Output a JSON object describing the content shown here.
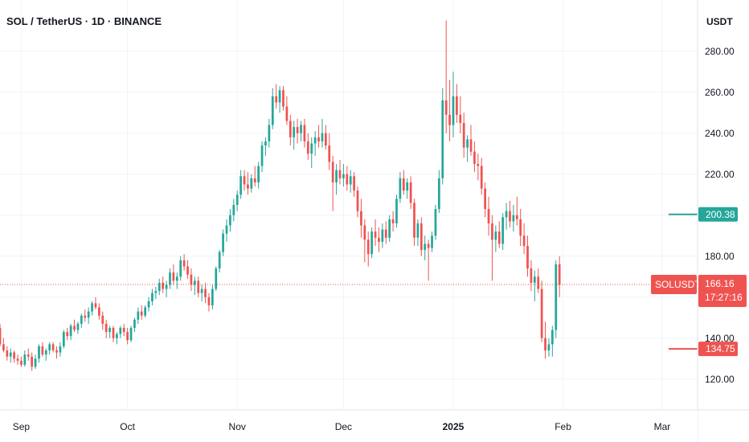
{
  "chart_data": {
    "type": "candlestick",
    "title": "SOL / TetherUS · 1D · BINANCE",
    "y_unit": "USDT",
    "ylim": [
      105,
      305
    ],
    "y_ticks": [
      "280.00",
      "260.00",
      "240.00",
      "220.00",
      "200.00",
      "180.00",
      "160.00",
      "140.00",
      "120.00"
    ],
    "y_tick_values": [
      280,
      260,
      240,
      220,
      200,
      180,
      160,
      140,
      120
    ],
    "x_labels": [
      "Sep",
      "Oct",
      "Nov",
      "Dec",
      "2025",
      "Feb",
      "Mar"
    ],
    "x_label_dates": [
      "2024-09-01",
      "2024-10-01",
      "2024-11-01",
      "2024-12-01",
      "2025-01-01",
      "2025-02-01",
      "2025-03-01"
    ],
    "x_range": [
      "2024-08-26",
      "2025-03-11"
    ],
    "grid": true,
    "colors": {
      "up": "#26a69a",
      "down": "#ef5350",
      "grid": "#f0f3fa",
      "current_line": "#ef5350"
    },
    "current_price": {
      "value": 166.16,
      "label": "166.16",
      "symbol": "SOLUSDT",
      "countdown": "17:27:16"
    },
    "levels": [
      {
        "value": 200.38,
        "label": "200.38",
        "color": "#26a69a",
        "start_date": "2025-03-01"
      },
      {
        "value": 134.75,
        "label": "134.75",
        "color": "#ef5350",
        "start_date": "2025-03-01"
      }
    ],
    "series": [
      {
        "type": "candlestick",
        "start_date": "2024-08-26",
        "ohlc": [
          [
            145,
            147,
            136,
            137
          ],
          [
            137,
            140,
            133,
            134
          ],
          [
            134,
            136,
            129,
            131
          ],
          [
            131,
            135,
            128,
            133
          ],
          [
            133,
            134,
            128,
            130
          ],
          [
            130,
            132,
            127,
            129
          ],
          [
            129,
            131,
            126,
            127
          ],
          [
            127,
            134,
            126,
            132
          ],
          [
            132,
            135,
            129,
            131
          ],
          [
            131,
            133,
            124,
            126
          ],
          [
            126,
            132,
            125,
            130
          ],
          [
            130,
            137,
            128,
            136
          ],
          [
            136,
            138,
            131,
            132
          ],
          [
            132,
            135,
            129,
            134
          ],
          [
            134,
            138,
            132,
            137
          ],
          [
            137,
            138,
            133,
            134
          ],
          [
            134,
            136,
            130,
            133
          ],
          [
            133,
            138,
            131,
            136
          ],
          [
            136,
            144,
            135,
            143
          ],
          [
            143,
            145,
            139,
            141
          ],
          [
            141,
            147,
            139,
            146
          ],
          [
            146,
            149,
            143,
            144
          ],
          [
            144,
            148,
            142,
            147
          ],
          [
            147,
            152,
            145,
            151
          ],
          [
            151,
            154,
            148,
            150
          ],
          [
            150,
            155,
            147,
            153
          ],
          [
            153,
            158,
            151,
            157
          ],
          [
            157,
            160,
            154,
            155
          ],
          [
            155,
            157,
            149,
            151
          ],
          [
            151,
            153,
            144,
            147
          ],
          [
            147,
            149,
            140,
            143
          ],
          [
            143,
            146,
            140,
            145
          ],
          [
            145,
            146,
            138,
            140
          ],
          [
            140,
            143,
            137,
            142
          ],
          [
            142,
            146,
            140,
            145
          ],
          [
            145,
            147,
            141,
            143
          ],
          [
            143,
            145,
            137,
            139
          ],
          [
            139,
            146,
            138,
            145
          ],
          [
            145,
            150,
            143,
            149
          ],
          [
            149,
            155,
            147,
            153
          ],
          [
            153,
            156,
            149,
            151
          ],
          [
            151,
            156,
            150,
            155
          ],
          [
            155,
            160,
            153,
            158
          ],
          [
            158,
            164,
            156,
            162
          ],
          [
            162,
            165,
            159,
            163
          ],
          [
            163,
            169,
            161,
            167
          ],
          [
            167,
            170,
            162,
            164
          ],
          [
            164,
            168,
            160,
            166
          ],
          [
            166,
            174,
            164,
            172
          ],
          [
            172,
            176,
            166,
            168
          ],
          [
            168,
            172,
            164,
            170
          ],
          [
            170,
            180,
            168,
            178
          ],
          [
            178,
            181,
            173,
            175
          ],
          [
            175,
            178,
            169,
            171
          ],
          [
            171,
            174,
            163,
            166
          ],
          [
            166,
            170,
            161,
            168
          ],
          [
            168,
            170,
            160,
            162
          ],
          [
            162,
            166,
            158,
            164
          ],
          [
            164,
            167,
            157,
            160
          ],
          [
            160,
            162,
            153,
            156
          ],
          [
            156,
            166,
            154,
            164
          ],
          [
            164,
            175,
            163,
            174
          ],
          [
            174,
            183,
            172,
            182
          ],
          [
            182,
            193,
            180,
            191
          ],
          [
            191,
            198,
            187,
            195
          ],
          [
            195,
            203,
            192,
            200
          ],
          [
            200,
            208,
            197,
            205
          ],
          [
            205,
            212,
            202,
            210
          ],
          [
            210,
            222,
            208,
            219
          ],
          [
            219,
            222,
            212,
            215
          ],
          [
            215,
            221,
            210,
            213
          ],
          [
            213,
            220,
            211,
            218
          ],
          [
            218,
            224,
            214,
            216
          ],
          [
            216,
            226,
            213,
            224
          ],
          [
            224,
            236,
            221,
            234
          ],
          [
            234,
            238,
            229,
            236
          ],
          [
            236,
            247,
            233,
            244
          ],
          [
            244,
            262,
            242,
            258
          ],
          [
            258,
            264,
            252,
            255
          ],
          [
            255,
            263,
            250,
            261
          ],
          [
            261,
            263,
            251,
            253
          ],
          [
            253,
            258,
            244,
            246
          ],
          [
            246,
            249,
            234,
            238
          ],
          [
            238,
            246,
            232,
            243
          ],
          [
            243,
            247,
            235,
            240
          ],
          [
            240,
            246,
            236,
            244
          ],
          [
            244,
            247,
            233,
            236
          ],
          [
            236,
            240,
            227,
            230
          ],
          [
            230,
            238,
            223,
            235
          ],
          [
            235,
            241,
            229,
            238
          ],
          [
            238,
            244,
            233,
            236
          ],
          [
            236,
            247,
            233,
            240
          ],
          [
            240,
            244,
            232,
            234
          ],
          [
            234,
            240,
            222,
            226
          ],
          [
            226,
            229,
            202,
            216
          ],
          [
            216,
            225,
            210,
            222
          ],
          [
            222,
            227,
            215,
            218
          ],
          [
            218,
            225,
            214,
            220
          ],
          [
            220,
            224,
            212,
            215
          ],
          [
            215,
            222,
            211,
            219
          ],
          [
            219,
            221,
            209,
            212
          ],
          [
            212,
            214,
            199,
            202
          ],
          [
            202,
            208,
            189,
            195
          ],
          [
            195,
            198,
            177,
            188
          ],
          [
            188,
            192,
            175,
            181
          ],
          [
            181,
            194,
            179,
            192
          ],
          [
            192,
            198,
            185,
            189
          ],
          [
            189,
            194,
            182,
            187
          ],
          [
            187,
            196,
            184,
            193
          ],
          [
            193,
            197,
            186,
            189
          ],
          [
            189,
            200,
            187,
            198
          ],
          [
            198,
            202,
            192,
            196
          ],
          [
            196,
            210,
            194,
            208
          ],
          [
            208,
            221,
            206,
            218
          ],
          [
            218,
            222,
            210,
            212
          ],
          [
            212,
            218,
            208,
            216
          ],
          [
            216,
            219,
            203,
            206
          ],
          [
            206,
            208,
            185,
            189
          ],
          [
            189,
            198,
            185,
            196
          ],
          [
            196,
            199,
            180,
            183
          ],
          [
            183,
            190,
            178,
            186
          ],
          [
            186,
            188,
            168,
            184
          ],
          [
            184,
            192,
            182,
            190
          ],
          [
            190,
            205,
            188,
            203
          ],
          [
            203,
            222,
            201,
            218
          ],
          [
            218,
            262,
            215,
            256
          ],
          [
            256,
            295,
            240,
            249
          ],
          [
            249,
            266,
            236,
            244
          ],
          [
            244,
            270,
            238,
            258
          ],
          [
            258,
            264,
            245,
            249
          ],
          [
            249,
            258,
            240,
            245
          ],
          [
            245,
            250,
            228,
            233
          ],
          [
            233,
            239,
            226,
            237
          ],
          [
            237,
            244,
            229,
            231
          ],
          [
            231,
            236,
            221,
            225
          ],
          [
            225,
            230,
            217,
            224
          ],
          [
            224,
            228,
            210,
            213
          ],
          [
            213,
            216,
            199,
            203
          ],
          [
            203,
            209,
            190,
            196
          ],
          [
            196,
            200,
            168,
            188
          ],
          [
            188,
            195,
            182,
            192
          ],
          [
            192,
            197,
            184,
            186
          ],
          [
            186,
            201,
            183,
            199
          ],
          [
            199,
            206,
            193,
            202
          ],
          [
            202,
            207,
            194,
            197
          ],
          [
            197,
            205,
            192,
            200
          ],
          [
            200,
            209,
            195,
            198
          ],
          [
            198,
            203,
            185,
            190
          ],
          [
            190,
            196,
            181,
            185
          ],
          [
            185,
            190,
            170,
            174
          ],
          [
            174,
            178,
            163,
            167
          ],
          [
            167,
            173,
            158,
            170
          ],
          [
            170,
            174,
            162,
            164
          ],
          [
            164,
            168,
            138,
            140
          ],
          [
            140,
            148,
            130,
            134
          ],
          [
            134,
            140,
            131,
            137
          ],
          [
            137,
            146,
            131,
            144
          ],
          [
            144,
            178,
            140,
            176
          ],
          [
            176,
            180,
            160,
            166
          ]
        ]
      }
    ]
  }
}
